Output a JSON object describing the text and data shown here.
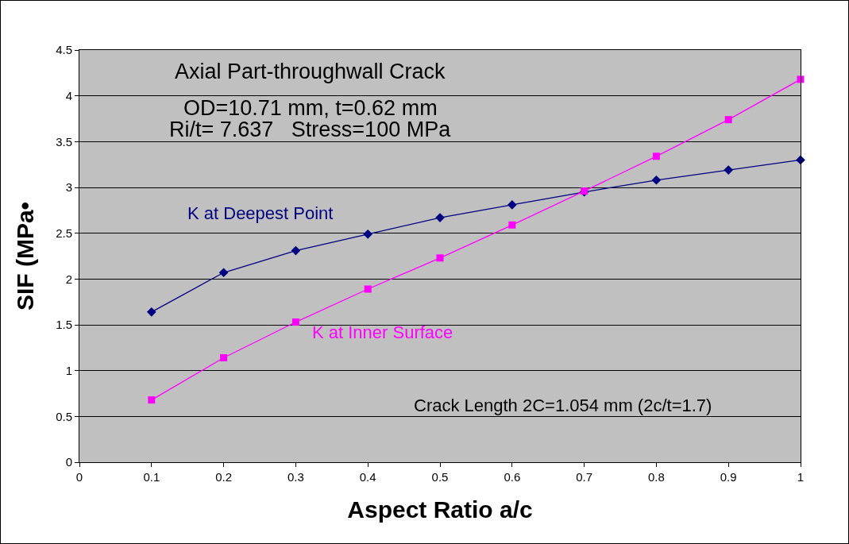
{
  "chart_data": {
    "type": "line",
    "xlabel": "Aspect Ratio a/c",
    "ylabel": "SIF (MPa•",
    "x": [
      0.1,
      0.2,
      0.3,
      0.4,
      0.5,
      0.6,
      0.7,
      0.8,
      0.9,
      1.0
    ],
    "series": [
      {
        "name": "K at Deepest Point",
        "color": "#000080",
        "marker": "diamond",
        "values": [
          1.64,
          2.07,
          2.31,
          2.49,
          2.67,
          2.81,
          2.95,
          3.08,
          3.19,
          3.3
        ]
      },
      {
        "name": "K at Inner Surface",
        "color": "#ff00ff",
        "marker": "square",
        "values": [
          0.68,
          1.14,
          1.53,
          1.89,
          2.23,
          2.59,
          2.96,
          3.34,
          3.74,
          4.18
        ]
      }
    ],
    "annotations": [
      "Axial Part-throughwall Crack",
      "OD=10.71 mm, t=0.62 mm",
      "Ri/t= 7.637   Stress=100 MPa",
      "Crack Length 2C=1.054 mm (2c/t=1.7)"
    ],
    "xlim": [
      0,
      1
    ],
    "xticks": [
      0,
      0.1,
      0.2,
      0.3,
      0.4,
      0.5,
      0.6,
      0.7,
      0.8,
      0.9,
      1
    ],
    "ylim": [
      0,
      4.5
    ],
    "yticks": [
      0,
      0.5,
      1,
      1.5,
      2,
      2.5,
      3,
      3.5,
      4,
      4.5
    ],
    "grid": "y",
    "legend": false,
    "line_style": "solid"
  }
}
